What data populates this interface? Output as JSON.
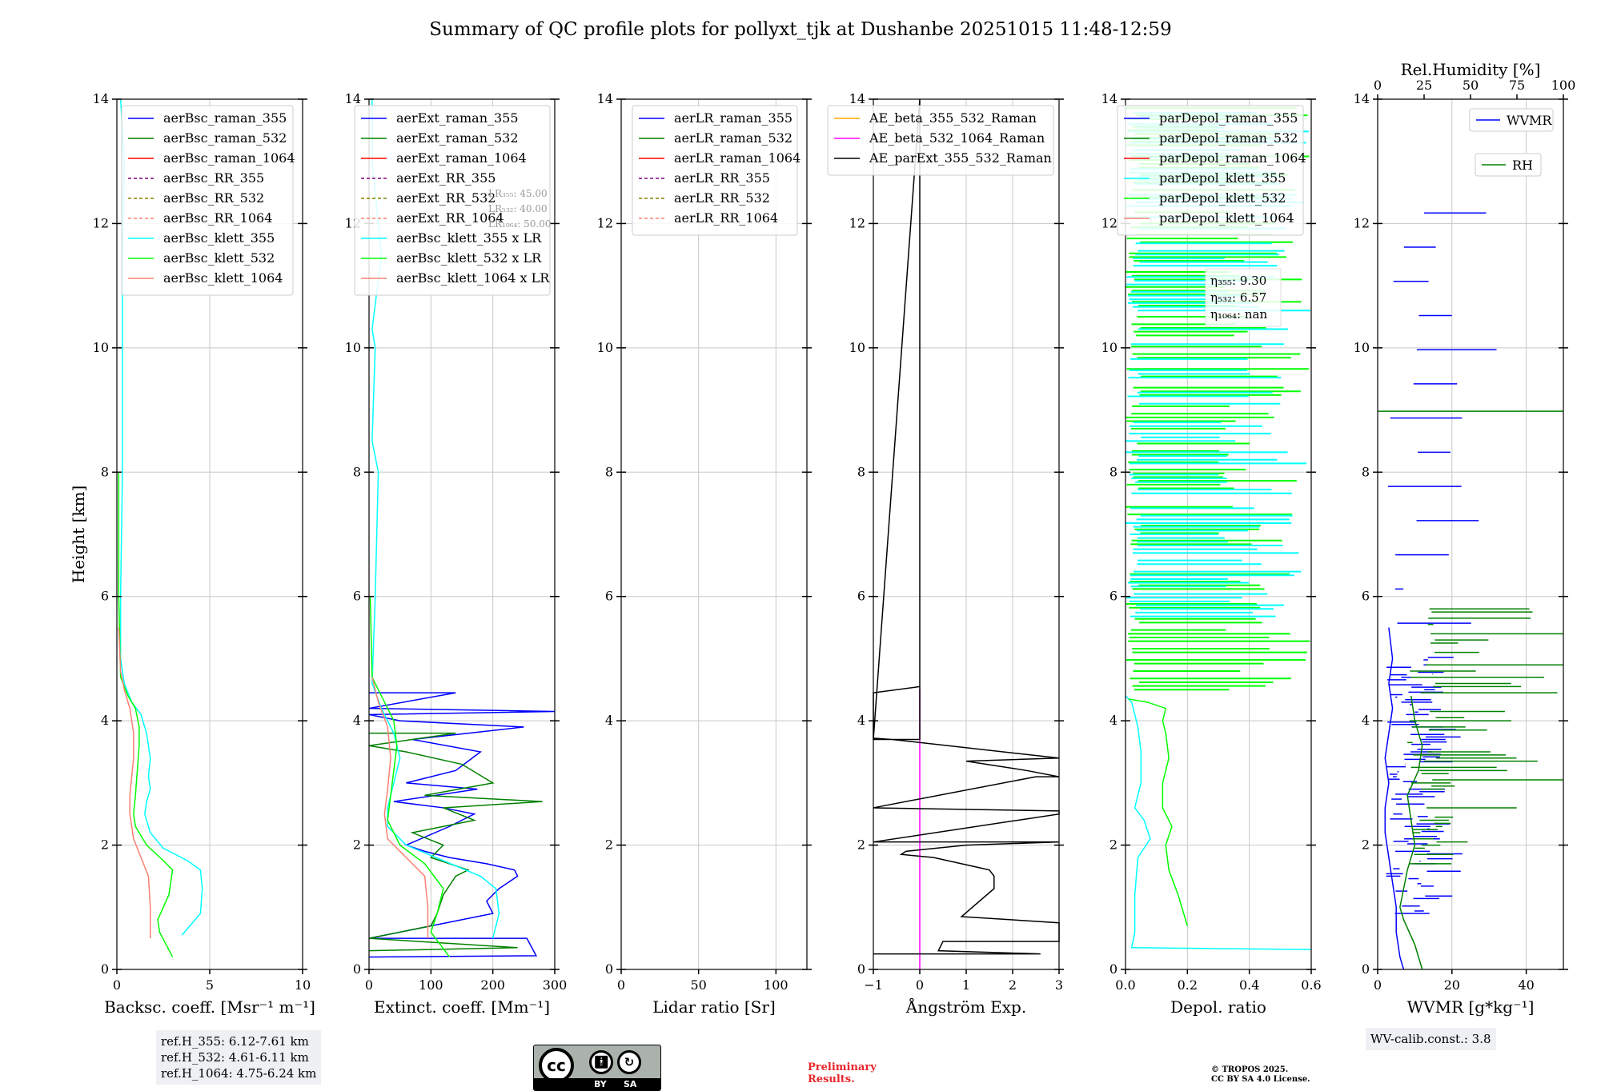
{
  "title": "Summary of QC profile plots for pollyxt_tjk at Dushanbe 20251015 11:48-12:59",
  "ref_box": [
    "ref.H_355: 6.12-7.61 km",
    "ref.H_532: 4.61-6.11 km",
    "ref.H_1064: 4.75-6.24 km"
  ],
  "wv_box": "WV-calib.const.: 3.8",
  "license": {
    "cc": "cc",
    "by": "BY",
    "sa": "SA"
  },
  "preliminary": [
    "Preliminary",
    "Results."
  ],
  "tropos": [
    "© TROPOS 2025.",
    "CC BY SA 4.0 License."
  ],
  "colors": {
    "blue": "#0000ff",
    "green": "#008000",
    "red": "#ff0000",
    "purple": "#800080",
    "olive": "#808000",
    "salmon": "#fa8072",
    "cyan": "#00ffff",
    "lime": "#00ff00",
    "orange": "#ffa500",
    "magenta": "#ff00ff",
    "black": "#000000"
  },
  "chart_data": [
    {
      "type": "line",
      "id": "backscatter",
      "xlabel": "Backsc. coeff. [Msr⁻¹ m⁻¹]",
      "ylabel": "Height [km]",
      "xlim": [
        0,
        10
      ],
      "ylim": [
        0,
        14
      ],
      "xticks": [
        0,
        5,
        10
      ],
      "xtick_labels": [
        "0",
        "5",
        "10"
      ],
      "yticks": [
        0,
        2,
        4,
        6,
        8,
        10,
        12,
        14
      ],
      "legend": [
        {
          "label": "aerBsc_raman_355",
          "color": "blue",
          "dash": false
        },
        {
          "label": "aerBsc_raman_532",
          "color": "green",
          "dash": false
        },
        {
          "label": "aerBsc_raman_1064",
          "color": "red",
          "dash": false
        },
        {
          "label": "aerBsc_RR_355",
          "color": "purple",
          "dash": true
        },
        {
          "label": "aerBsc_RR_532",
          "color": "olive",
          "dash": true
        },
        {
          "label": "aerBsc_RR_1064",
          "color": "salmon",
          "dash": true
        },
        {
          "label": "aerBsc_klett_355",
          "color": "cyan",
          "dash": false
        },
        {
          "label": "aerBsc_klett_532",
          "color": "lime",
          "dash": false
        },
        {
          "label": "aerBsc_klett_1064",
          "color": "salmon",
          "dash": false
        }
      ],
      "series": [
        {
          "name": "aerBsc_klett_355",
          "color": "cyan",
          "x": [
            3.5,
            4.5,
            4.6,
            4.5,
            3.8,
            2.5,
            1.8,
            1.5,
            1.6,
            1.8,
            1.7,
            1.8,
            1.6,
            1.3,
            0.8,
            0.4,
            0.2,
            0.2,
            0.3,
            0.3,
            0.3,
            0.4,
            0.2
          ],
          "y": [
            0.55,
            0.9,
            1.3,
            1.6,
            1.75,
            1.95,
            2.2,
            2.5,
            2.7,
            2.9,
            3.1,
            3.4,
            3.8,
            4.1,
            4.3,
            4.6,
            5.0,
            6.0,
            8.0,
            10.0,
            11.5,
            13.0,
            14.0
          ]
        },
        {
          "name": "aerBsc_klett_532",
          "color": "lime",
          "x": [
            3.0,
            2.3,
            2.2,
            2.8,
            3.0,
            2.5,
            1.6,
            1.0,
            0.9,
            1.0,
            1.1,
            1.2,
            1.2,
            1.0,
            0.6,
            0.2,
            0.1,
            0.1
          ],
          "y": [
            0.2,
            0.6,
            0.8,
            1.2,
            1.6,
            1.75,
            2.0,
            2.3,
            2.5,
            2.8,
            3.2,
            3.6,
            3.9,
            4.2,
            4.4,
            4.7,
            6.0,
            8.0
          ]
        },
        {
          "name": "aerBsc_klett_1064",
          "color": "salmon",
          "x": [
            1.8,
            1.8,
            1.7,
            1.3,
            0.9,
            0.7,
            0.7,
            0.8,
            0.9,
            0.9,
            0.7,
            0.4,
            0.2,
            0.1
          ],
          "y": [
            0.5,
            1.0,
            1.5,
            1.8,
            2.1,
            2.5,
            2.8,
            3.1,
            3.4,
            3.8,
            4.2,
            4.5,
            4.8,
            5.5
          ]
        }
      ],
      "annotations": []
    },
    {
      "type": "line",
      "id": "extinction",
      "xlabel": "Extinct. coeff. [Mm⁻¹]",
      "xlim": [
        0,
        300
      ],
      "ylim": [
        0,
        14
      ],
      "xticks": [
        0,
        100,
        200,
        300
      ],
      "xtick_labels": [
        "0",
        "100",
        "200",
        "300"
      ],
      "yticks": [
        0,
        2,
        4,
        6,
        8,
        10,
        12,
        14
      ],
      "legend": [
        {
          "label": "aerExt_raman_355",
          "color": "blue",
          "dash": false
        },
        {
          "label": "aerExt_raman_532",
          "color": "green",
          "dash": false
        },
        {
          "label": "aerExt_raman_1064",
          "color": "red",
          "dash": false
        },
        {
          "label": "aerExt_RR_355",
          "color": "purple",
          "dash": true
        },
        {
          "label": "aerExt_RR_532",
          "color": "olive",
          "dash": true
        },
        {
          "label": "aerExt_RR_1064",
          "color": "salmon",
          "dash": true
        },
        {
          "label": "aerBsc_klett_355 x LR",
          "color": "cyan",
          "dash": false
        },
        {
          "label": "aerBsc_klett_532 x LR",
          "color": "lime",
          "dash": false
        },
        {
          "label": "aerBsc_klett_1064 x LR",
          "color": "salmon",
          "dash": false
        }
      ],
      "series": [
        {
          "name": "aerExt_raman_355",
          "color": "blue",
          "x": [
            0,
            270,
            255,
            0,
            200,
            190,
            210,
            240,
            235,
            190,
            130,
            90,
            60,
            130,
            170,
            120,
            40,
            175,
            60,
            140,
            180,
            70,
            250,
            50,
            0,
            300,
            0,
            140,
            0
          ],
          "y": [
            0.2,
            0.22,
            0.5,
            0.5,
            0.9,
            1.1,
            1.3,
            1.5,
            1.6,
            1.7,
            1.8,
            1.9,
            2.0,
            2.3,
            2.5,
            2.6,
            2.7,
            2.9,
            3.0,
            3.2,
            3.5,
            3.7,
            3.9,
            4.0,
            4.1,
            4.15,
            4.2,
            4.45,
            4.45
          ]
        },
        {
          "name": "aerExt_raman_532",
          "color": "green",
          "x": [
            0,
            240,
            0,
            100,
            110,
            120,
            140,
            160,
            100,
            120,
            70,
            170,
            120,
            280,
            90,
            200,
            150,
            60,
            0,
            140,
            0
          ],
          "y": [
            0.3,
            0.35,
            0.5,
            0.7,
            0.9,
            1.2,
            1.5,
            1.6,
            1.8,
            2.0,
            2.2,
            2.4,
            2.6,
            2.7,
            2.8,
            3.0,
            3.3,
            3.5,
            3.6,
            3.8,
            3.8
          ]
        },
        {
          "name": "aerBsc_klett_355 x LR",
          "color": "cyan",
          "x": [
            200,
            210,
            205,
            180,
            120,
            60,
            30,
            30,
            40,
            50,
            40,
            20,
            5,
            10,
            15,
            5,
            10,
            5,
            20,
            5,
            5
          ],
          "y": [
            0.5,
            0.9,
            1.3,
            1.5,
            1.75,
            2.0,
            2.3,
            2.6,
            3.0,
            3.4,
            3.8,
            4.2,
            4.6,
            6.0,
            8.0,
            8.5,
            10.0,
            10.3,
            11.5,
            13.0,
            14.0
          ]
        },
        {
          "name": "aerBsc_klett_532 x LR",
          "color": "lime",
          "x": [
            130,
            100,
            110,
            120,
            90,
            50,
            30,
            35,
            40,
            45,
            40,
            25,
            5,
            2
          ],
          "y": [
            0.2,
            0.6,
            0.9,
            1.3,
            1.7,
            2.0,
            2.4,
            2.8,
            3.2,
            3.6,
            4.0,
            4.3,
            4.7,
            6.0
          ]
        },
        {
          "name": "aerBsc_klett_1064 x LR",
          "color": "salmon",
          "x": [
            95,
            95,
            90,
            60,
            30,
            25,
            30,
            35,
            30,
            15,
            5
          ],
          "y": [
            0.5,
            1.0,
            1.5,
            1.8,
            2.1,
            2.5,
            2.9,
            3.4,
            3.9,
            4.3,
            4.7
          ]
        }
      ],
      "annotations": [
        "LR₃₅₅: 45.00",
        "LR₅₃₂: 40.00",
        "LR₁₀₆₄: 50.00"
      ]
    },
    {
      "type": "line",
      "id": "lidar_ratio",
      "xlabel": "Lidar ratio [Sr]",
      "xlim": [
        0,
        120
      ],
      "ylim": [
        0,
        14
      ],
      "xticks": [
        0,
        50,
        100
      ],
      "xtick_labels": [
        "0",
        "50",
        "100"
      ],
      "yticks": [
        0,
        2,
        4,
        6,
        8,
        10,
        12,
        14
      ],
      "legend": [
        {
          "label": "aerLR_raman_355",
          "color": "blue",
          "dash": false
        },
        {
          "label": "aerLR_raman_532",
          "color": "green",
          "dash": false
        },
        {
          "label": "aerLR_raman_1064",
          "color": "red",
          "dash": false
        },
        {
          "label": "aerLR_RR_355",
          "color": "purple",
          "dash": true
        },
        {
          "label": "aerLR_RR_532",
          "color": "olive",
          "dash": true
        },
        {
          "label": "aerLR_RR_1064",
          "color": "salmon",
          "dash": true
        }
      ],
      "series": [],
      "annotations": []
    },
    {
      "type": "line",
      "id": "angstrom",
      "xlabel": "Ångström Exp.",
      "xlim": [
        -1,
        3
      ],
      "ylim": [
        0,
        14
      ],
      "xticks": [
        -1,
        0,
        1,
        2,
        3
      ],
      "xtick_labels": [
        "−1",
        "0",
        "1",
        "2",
        "3"
      ],
      "yticks": [
        0,
        2,
        4,
        6,
        8,
        10,
        12,
        14
      ],
      "legend": [
        {
          "label": "AE_beta_355_532_Raman",
          "color": "orange",
          "dash": false
        },
        {
          "label": "AE_beta_532_1064_Raman",
          "color": "magenta",
          "dash": false
        },
        {
          "label": "AE_parExt_355_532_Raman",
          "color": "black",
          "dash": false
        }
      ],
      "series": [
        {
          "name": "AE_beta_532_1064_Raman",
          "color": "magenta",
          "x": [
            0,
            0
          ],
          "y": [
            0,
            4.5
          ]
        },
        {
          "name": "AE_parExt_355_532_Raman",
          "color": "black",
          "x": [
            -1,
            2.6,
            0.4,
            0.5,
            3.0,
            3.0,
            0.9,
            1.6,
            1.6,
            1.5,
            1.2,
            0.3,
            -0.4,
            -0.3,
            1.0,
            3.0,
            -1,
            3.0,
            3.0,
            -1,
            2.5,
            3.0,
            2.3,
            1.0,
            3.0,
            -0.6,
            -1,
            -1,
            0,
            0,
            -1,
            0,
            0,
            0
          ],
          "y": [
            0.25,
            0.25,
            0.3,
            0.45,
            0.45,
            0.75,
            0.85,
            1.3,
            1.5,
            1.6,
            1.65,
            1.8,
            1.85,
            1.9,
            2.0,
            2.05,
            2.05,
            2.5,
            2.55,
            2.6,
            3.1,
            3.1,
            3.2,
            3.35,
            3.4,
            3.7,
            3.72,
            4.45,
            4.55,
            14.0,
            3.7,
            3.7,
            4.55,
            14.0
          ]
        }
      ],
      "annotations": []
    },
    {
      "type": "line",
      "id": "depol",
      "xlabel": "Depol. ratio",
      "xlim": [
        0,
        0.6
      ],
      "ylim": [
        0,
        14
      ],
      "xticks": [
        0,
        0.2,
        0.4,
        0.6
      ],
      "xtick_labels": [
        "0.0",
        "0.2",
        "0.4",
        "0.6"
      ],
      "yticks": [
        0,
        2,
        4,
        6,
        8,
        10,
        12,
        14
      ],
      "legend": [
        {
          "label": "parDepol_raman_355",
          "color": "blue",
          "dash": false
        },
        {
          "label": "parDepol_raman_532",
          "color": "green",
          "dash": false
        },
        {
          "label": "parDepol_raman_1064",
          "color": "red",
          "dash": false
        },
        {
          "label": "parDepol_klett_355",
          "color": "cyan",
          "dash": false
        },
        {
          "label": "parDepol_klett_532",
          "color": "lime",
          "dash": false
        },
        {
          "label": "parDepol_klett_1064",
          "color": "salmon",
          "dash": false
        }
      ],
      "series": [
        {
          "name": "parDepol_klett_355",
          "color": "cyan",
          "x": [
            0.6,
            0.02,
            0.03,
            0.03,
            0.04,
            0.08,
            0.06,
            0.03,
            0.05,
            0.05,
            0.04,
            0.03,
            0.02,
            0.0
          ],
          "y": [
            0.32,
            0.35,
            0.6,
            1.2,
            1.8,
            2.1,
            2.4,
            2.6,
            3.0,
            3.5,
            3.9,
            4.1,
            4.3,
            4.4
          ]
        },
        {
          "name": "parDepol_klett_532",
          "color": "lime",
          "x": [
            0.2,
            0.17,
            0.14,
            0.13,
            0.15,
            0.12,
            0.12,
            0.14,
            0.13,
            0.12,
            0.13,
            0.07,
            0.01
          ],
          "y": [
            0.7,
            1.2,
            1.6,
            2.0,
            2.3,
            2.6,
            3.0,
            3.4,
            3.8,
            4.0,
            4.2,
            4.3,
            4.35
          ]
        }
      ],
      "annotations": [
        "η₃₅₅: 9.30",
        "η₅₃₂: 6.57",
        "η₁₀₆₄: nan"
      ],
      "noise_bands": [
        {
          "color": "lime",
          "from": 4.5,
          "to": 14.0
        },
        {
          "color": "cyan",
          "from": 5.5,
          "to": 14.0
        }
      ]
    },
    {
      "type": "line",
      "id": "wvmr",
      "xlabel": "WVMR [g*kg⁻¹]",
      "xlabel_top": "Rel.Humidity [%]",
      "xlim": [
        0,
        50
      ],
      "ylim": [
        0,
        14
      ],
      "xticks": [
        0,
        20,
        40
      ],
      "xtick_labels": [
        "0",
        "20",
        "40"
      ],
      "xlim_top": [
        0,
        100
      ],
      "xticks_top": [
        0,
        25,
        50,
        75,
        100
      ],
      "xtick_labels_top": [
        "0",
        "25",
        "50",
        "75",
        "100"
      ],
      "yticks": [
        0,
        2,
        4,
        6,
        8,
        10,
        12,
        14
      ],
      "legend": [
        {
          "label": "WVMR",
          "color": "blue",
          "dash": false
        },
        {
          "label": "RH",
          "color": "green",
          "dash": false
        }
      ],
      "series": [
        {
          "name": "WVMR",
          "color": "blue",
          "x": [
            7,
            6,
            5,
            5,
            4,
            3,
            2,
            2,
            3,
            2,
            3,
            4,
            3,
            4,
            3
          ],
          "y": [
            0,
            0.2,
            0.6,
            1.0,
            1.4,
            1.8,
            2.2,
            2.6,
            3.0,
            3.4,
            3.8,
            4.2,
            4.6,
            5.0,
            5.5
          ]
        },
        {
          "name": "RH",
          "color": "green",
          "x": [
            12,
            10,
            7,
            6,
            7,
            8,
            10,
            9,
            8,
            11,
            12,
            10,
            9
          ],
          "y": [
            0,
            0.4,
            0.8,
            1.0,
            1.3,
            1.6,
            2.0,
            2.4,
            2.8,
            3.2,
            3.6,
            4.0,
            4.4
          ]
        }
      ],
      "annotations": []
    }
  ]
}
